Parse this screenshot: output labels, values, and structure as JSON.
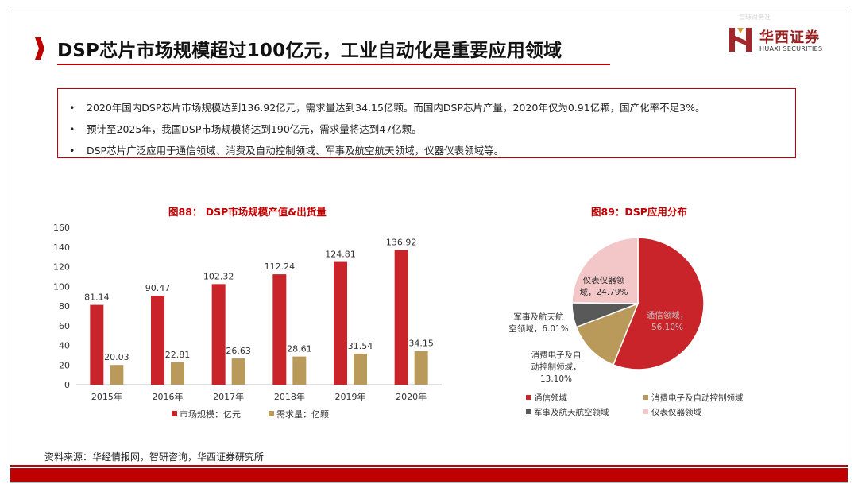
{
  "slide": {
    "title": "DSP芯片市场规模超过100亿元，工业自动化是重要应用领域",
    "logo_cn": "华西证券",
    "logo_en": "HUAXI SECURITIES",
    "watermark": "雪球财务社"
  },
  "summary": {
    "bullet_symbol": "•",
    "bullets": [
      "2020年国内DSP芯片市场规模达到136.92亿元，需求量达到34.15亿颗。而国内DSP芯片产量，2020年仅为0.91亿颗，国产化率不足3%。",
      "预计至2025年，我国DSP市场规模将达到190亿元，需求量将达到47亿颗。",
      "DSP芯片广泛应用于通信领域、消费及自动控制领域、军事及航空航天领域，仪器仪表领域等。"
    ]
  },
  "source": "资料来源：华经情报网，智研咨询，华西证券研究所",
  "colors": {
    "brand_red": "#c00000",
    "bar_red": "#c8242a",
    "bar_gold": "#b99a5b",
    "pie_gray": "#595959",
    "pie_pink": "#f3c6c8",
    "text_dark": "#222222"
  },
  "chart_data": [
    {
      "type": "bar",
      "title": "图88： DSP市场规模产值&出货量",
      "categories": [
        "2015年",
        "2016年",
        "2017年",
        "2018年",
        "2019年",
        "2020年"
      ],
      "series": [
        {
          "name": "市场规模：亿元",
          "values": [
            81.14,
            90.47,
            102.32,
            112.24,
            124.81,
            136.92
          ],
          "labels": [
            "81.14",
            "90.47",
            "102.32",
            "112.24",
            "124.81",
            "136.92"
          ],
          "color": "#c8242a"
        },
        {
          "name": "需求量：亿颗",
          "values": [
            20.03,
            22.81,
            26.63,
            28.61,
            31.54,
            34.15
          ],
          "labels": [
            "20.03",
            "22.81",
            "26.63",
            "28.61",
            "31.54",
            "34.15"
          ],
          "color": "#b99a5b"
        }
      ],
      "ylim": [
        0,
        160
      ],
      "yticks": [
        0,
        20,
        40,
        60,
        80,
        100,
        120,
        140,
        160
      ],
      "grid": false,
      "legend": "bottom"
    },
    {
      "type": "pie",
      "title": "图89：DSP应用分布",
      "slices": [
        {
          "name": "通信领域",
          "value": 56.1,
          "label": [
            "通信领域，",
            "56.10%"
          ],
          "color": "#c8242a"
        },
        {
          "name": "消费电子及自动控制领域",
          "value": 13.1,
          "label": [
            "消费电子及自",
            "动控制领域，",
            "13.10%"
          ],
          "color": "#b99a5b"
        },
        {
          "name": "军事及航天航空领域",
          "value": 6.01,
          "label": [
            "军事及航天航",
            "空领域，6.01%"
          ],
          "color": "#595959"
        },
        {
          "name": "仪表仪器领域",
          "value": 24.79,
          "label": [
            "仪表仪器领",
            "域，24.79%"
          ],
          "color": "#f3c6c8"
        }
      ],
      "legend": "bottom"
    }
  ]
}
